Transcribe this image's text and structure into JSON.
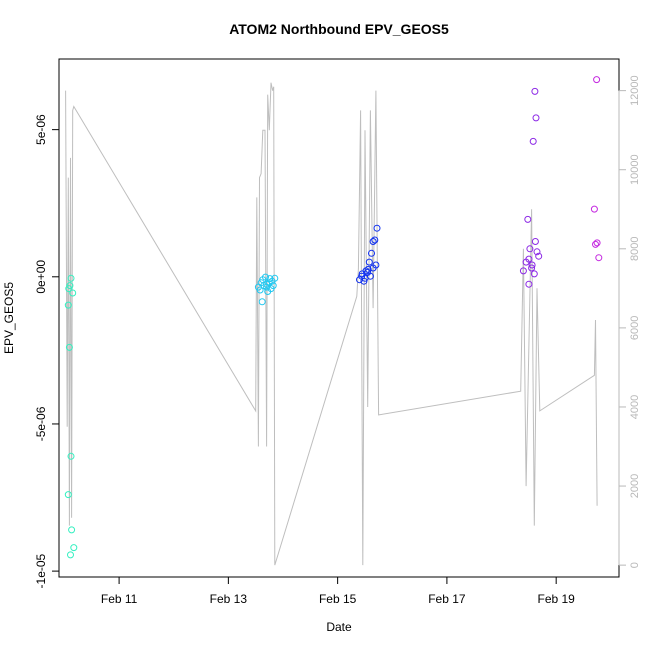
{
  "chart_data": {
    "type": "scatter",
    "title": "ATOM2 Northbound EPV_GEOS5",
    "xlabel": "Date",
    "ylabel": "EPV_GEOS5",
    "x_ticks": [
      "Feb 11",
      "Feb 13",
      "Feb 15",
      "Feb 17",
      "Feb 19"
    ],
    "x_tick_values": [
      11,
      13,
      15,
      17,
      19
    ],
    "xlim": [
      9.9,
      20.15
    ],
    "y_ticks": [
      "-1e-05",
      "-5e-06",
      "0e+00",
      "5e-06"
    ],
    "y_tick_values": [
      -1e-05,
      -5e-06,
      0,
      5e-06
    ],
    "ylim": [
      -1.02e-05,
      7.4e-06
    ],
    "y2_ticks": [
      "0",
      "2000",
      "4000",
      "6000",
      "8000",
      "10000",
      "12000"
    ],
    "y2_tick_values": [
      0,
      2000,
      4000,
      6000,
      8000,
      10000,
      12000
    ],
    "y2lim": [
      -300,
      12800
    ],
    "grid": false,
    "legend": "none",
    "colors": {
      "line": "#bebebe",
      "axis": "#000000",
      "right_axis": "#b8b8b8",
      "points": [
        "#33f0c0",
        "#22c8f0",
        "#1030f0",
        "#8c28e6",
        "#c428e0"
      ]
    },
    "series": [
      {
        "type": "scatter",
        "points": [
          [
            10.08,
            -4e-07,
            0
          ],
          [
            10.1,
            -3e-07,
            0
          ],
          [
            10.12,
            -5e-08,
            0
          ],
          [
            10.15,
            -5.5e-07,
            0
          ],
          [
            10.07,
            -9.6e-07,
            0
          ],
          [
            10.09,
            -2.4e-06,
            0
          ],
          [
            10.12,
            -6.1e-06,
            0
          ],
          [
            10.07,
            -7.4e-06,
            0
          ],
          [
            10.13,
            -8.6e-06,
            0
          ],
          [
            10.17,
            -9.2e-06,
            0
          ],
          [
            10.11,
            -9.45e-06,
            0
          ],
          [
            13.55,
            -3.5e-07,
            1
          ],
          [
            13.6,
            -2e-07,
            1
          ],
          [
            13.63,
            -1e-07,
            1
          ],
          [
            13.58,
            -4.5e-07,
            1
          ],
          [
            13.65,
            -3e-07,
            1
          ],
          [
            13.68,
            -1e-08,
            1
          ],
          [
            13.7,
            -2.5e-07,
            1
          ],
          [
            13.72,
            -5e-07,
            1
          ],
          [
            13.75,
            -2e-07,
            1
          ],
          [
            13.78,
            -4e-07,
            1
          ],
          [
            13.8,
            -1.5e-07,
            1
          ],
          [
            13.82,
            -3e-07,
            1
          ],
          [
            13.85,
            -5e-08,
            1
          ],
          [
            13.62,
            -8.5e-07,
            1
          ],
          [
            13.7,
            -3.5e-07,
            1
          ],
          [
            13.76,
            -6e-08,
            1
          ],
          [
            15.4,
            -1e-07,
            2
          ],
          [
            15.45,
            1e-07,
            2
          ],
          [
            15.5,
            -5e-08,
            2
          ],
          [
            15.55,
            1.5e-07,
            2
          ],
          [
            15.6,
            2e-08,
            2
          ],
          [
            15.65,
            3e-07,
            2
          ],
          [
            15.7,
            4e-07,
            2
          ],
          [
            15.48,
            -1.5e-07,
            2
          ],
          [
            15.52,
            2e-07,
            2
          ],
          [
            15.58,
            5e-07,
            2
          ],
          [
            15.62,
            8e-07,
            2
          ],
          [
            15.65,
            1.2e-06,
            2
          ],
          [
            15.68,
            1.25e-06,
            2
          ],
          [
            15.72,
            1.65e-06,
            2
          ],
          [
            15.44,
            2e-08,
            2
          ],
          [
            15.56,
            2.5e-07,
            2
          ],
          [
            18.4,
            2e-07,
            3
          ],
          [
            18.45,
            5e-07,
            3
          ],
          [
            18.5,
            6e-07,
            3
          ],
          [
            18.55,
            3e-07,
            3
          ],
          [
            18.6,
            1e-07,
            3
          ],
          [
            18.65,
            8.5e-07,
            3
          ],
          [
            18.52,
            9.5e-07,
            3
          ],
          [
            18.62,
            1.2e-06,
            3
          ],
          [
            18.48,
            1.95e-06,
            3
          ],
          [
            18.58,
            4.6e-06,
            3
          ],
          [
            18.63,
            5.4e-06,
            3
          ],
          [
            18.61,
            6.3e-06,
            3
          ],
          [
            18.5,
            -2.5e-07,
            3
          ],
          [
            18.56,
            4e-07,
            3
          ],
          [
            18.68,
            7e-07,
            3
          ],
          [
            19.7,
            2.3e-06,
            4
          ],
          [
            19.72,
            1.1e-06,
            4
          ],
          [
            19.75,
            1.15e-06,
            4
          ],
          [
            19.78,
            6.5e-07,
            4
          ],
          [
            19.74,
            6.7e-06,
            4
          ]
        ]
      },
      {
        "type": "line",
        "axis": "right",
        "points": [
          [
            10.02,
            12000
          ],
          [
            10.05,
            3500
          ],
          [
            10.07,
            9800
          ],
          [
            10.09,
            1000
          ],
          [
            10.11,
            10300
          ],
          [
            10.13,
            1200
          ],
          [
            10.15,
            11500
          ],
          [
            10.17,
            11600
          ],
          [
            13.5,
            3900
          ],
          [
            13.52,
            9300
          ],
          [
            13.55,
            3000
          ],
          [
            13.57,
            9800
          ],
          [
            13.6,
            9900
          ],
          [
            13.63,
            11000
          ],
          [
            13.67,
            11000
          ],
          [
            13.7,
            3000
          ],
          [
            13.72,
            11900
          ],
          [
            13.75,
            11000
          ],
          [
            13.78,
            12200
          ],
          [
            13.81,
            12000
          ],
          [
            13.83,
            12100
          ],
          [
            13.85,
            0
          ],
          [
            15.35,
            6800
          ],
          [
            15.38,
            7500
          ],
          [
            15.42,
            11500
          ],
          [
            15.46,
            0
          ],
          [
            15.5,
            11000
          ],
          [
            15.55,
            4000
          ],
          [
            15.6,
            11500
          ],
          [
            15.65,
            6500
          ],
          [
            15.7,
            12000
          ],
          [
            15.75,
            3800
          ],
          [
            18.35,
            4400
          ],
          [
            18.4,
            8000
          ],
          [
            18.45,
            2000
          ],
          [
            18.55,
            9000
          ],
          [
            18.6,
            1000
          ],
          [
            18.65,
            7000
          ],
          [
            18.7,
            3900
          ],
          [
            19.7,
            4800
          ],
          [
            19.72,
            6200
          ],
          [
            19.75,
            1500
          ]
        ]
      }
    ]
  }
}
